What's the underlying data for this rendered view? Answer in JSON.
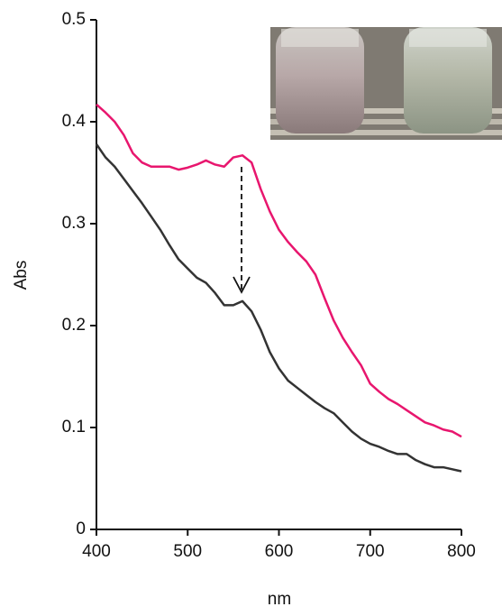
{
  "chart_data": {
    "type": "line",
    "xlabel": "nm",
    "ylabel": "Abs",
    "x": [
      400,
      410,
      420,
      430,
      440,
      450,
      460,
      470,
      480,
      490,
      500,
      510,
      520,
      530,
      540,
      550,
      560,
      570,
      580,
      590,
      600,
      610,
      620,
      630,
      640,
      650,
      660,
      670,
      680,
      690,
      700,
      710,
      720,
      730,
      740,
      750,
      760,
      770,
      780,
      790,
      800
    ],
    "series": [
      {
        "color": "#e8166e",
        "values": [
          0.417,
          0.409,
          0.4,
          0.387,
          0.369,
          0.36,
          0.356,
          0.356,
          0.356,
          0.353,
          0.355,
          0.358,
          0.362,
          0.358,
          0.356,
          0.365,
          0.367,
          0.36,
          0.334,
          0.312,
          0.294,
          0.282,
          0.272,
          0.263,
          0.25,
          0.227,
          0.205,
          0.188,
          0.174,
          0.161,
          0.143,
          0.135,
          0.128,
          0.123,
          0.117,
          0.111,
          0.105,
          0.102,
          0.098,
          0.096,
          0.091
        ]
      },
      {
        "color": "#333333",
        "values": [
          0.378,
          0.365,
          0.356,
          0.344,
          0.332,
          0.32,
          0.307,
          0.294,
          0.279,
          0.265,
          0.256,
          0.247,
          0.242,
          0.232,
          0.22,
          0.22,
          0.224,
          0.214,
          0.196,
          0.174,
          0.158,
          0.146,
          0.139,
          0.132,
          0.125,
          0.119,
          0.114,
          0.105,
          0.096,
          0.089,
          0.084,
          0.081,
          0.077,
          0.074,
          0.074,
          0.068,
          0.064,
          0.061,
          0.061,
          0.059,
          0.057
        ]
      }
    ],
    "xlim": [
      400,
      800
    ],
    "xticks": [
      400,
      500,
      600,
      700,
      800
    ],
    "ylim": [
      0,
      0.5
    ],
    "yticks": [
      0,
      0.1,
      0.2,
      0.3,
      0.4,
      0.5
    ]
  }
}
